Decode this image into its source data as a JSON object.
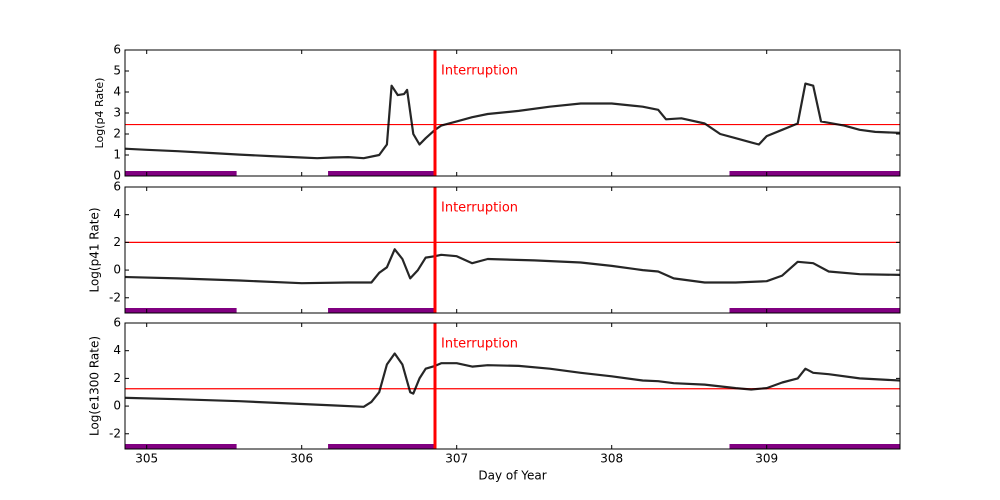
{
  "chart_data": [
    {
      "type": "line",
      "y_label": "Log(p4 Rate)",
      "color": "#000000",
      "x": [
        304.86,
        305.0,
        305.2,
        305.4,
        305.6,
        305.8,
        306.0,
        306.1,
        306.2,
        306.3,
        306.4,
        306.5,
        306.55,
        306.58,
        306.62,
        306.66,
        306.68,
        306.72,
        306.76,
        306.8,
        306.86,
        306.9,
        307.0,
        307.1,
        307.2,
        307.4,
        307.6,
        307.8,
        308.0,
        308.2,
        308.3,
        308.35,
        308.45,
        308.6,
        308.7,
        308.8,
        308.9,
        308.95,
        309.0,
        309.1,
        309.2,
        309.25,
        309.3,
        309.35,
        309.5,
        309.6,
        309.7,
        309.86
      ],
      "values": [
        1.3,
        1.25,
        1.18,
        1.1,
        1.02,
        0.95,
        0.88,
        0.85,
        0.88,
        0.9,
        0.85,
        1.0,
        1.5,
        4.3,
        3.85,
        3.9,
        4.1,
        2.0,
        1.5,
        1.8,
        2.2,
        2.4,
        2.6,
        2.8,
        2.95,
        3.1,
        3.3,
        3.45,
        3.45,
        3.3,
        3.15,
        2.7,
        2.75,
        2.5,
        2.0,
        1.8,
        1.6,
        1.5,
        1.9,
        2.2,
        2.5,
        4.4,
        4.3,
        2.6,
        2.4,
        2.2,
        2.1,
        2.05
      ],
      "xlim": [
        304.86,
        309.86
      ],
      "xticks": [
        305,
        306,
        307,
        308,
        309
      ],
      "ylim": [
        0,
        6
      ],
      "yticks": [
        0,
        1,
        2,
        3,
        4,
        5,
        6
      ],
      "threshold": 2.45,
      "threshold_color": "#ff0000",
      "annotation": {
        "text": "Interruption",
        "x": 306.86,
        "color": "#ff0000"
      },
      "bands": [
        [
          304.86,
          305.58
        ],
        [
          306.17,
          306.86
        ],
        [
          308.76,
          309.86
        ]
      ],
      "band_color": "#800080"
    },
    {
      "type": "line",
      "y_label": "Log(p41 Rate)",
      "color": "#000000",
      "x": [
        304.86,
        305.2,
        305.6,
        306.0,
        306.3,
        306.45,
        306.5,
        306.55,
        306.6,
        306.65,
        306.7,
        306.75,
        306.8,
        306.86,
        306.9,
        307.0,
        307.1,
        307.2,
        307.5,
        307.8,
        308.0,
        308.2,
        308.3,
        308.4,
        308.6,
        308.8,
        309.0,
        309.1,
        309.2,
        309.3,
        309.4,
        309.6,
        309.86
      ],
      "values": [
        -0.5,
        -0.6,
        -0.75,
        -0.95,
        -0.9,
        -0.9,
        -0.2,
        0.2,
        1.5,
        0.8,
        -0.6,
        0.0,
        0.9,
        1.0,
        1.1,
        1.0,
        0.5,
        0.8,
        0.7,
        0.55,
        0.3,
        0.0,
        -0.1,
        -0.6,
        -0.9,
        -0.9,
        -0.8,
        -0.4,
        0.6,
        0.5,
        -0.1,
        -0.3,
        -0.35
      ],
      "xlim": [
        304.86,
        309.86
      ],
      "xticks": [
        305,
        306,
        307,
        308,
        309
      ],
      "ylim": [
        -3.1,
        6
      ],
      "yticks": [
        -2,
        0,
        2,
        4,
        6
      ],
      "threshold": 2,
      "threshold_color": "#ff0000",
      "annotation": {
        "text": "Interruption",
        "x": 306.86,
        "color": "#ff0000"
      },
      "bands": [
        [
          304.86,
          305.58
        ],
        [
          306.17,
          306.86
        ],
        [
          308.76,
          309.86
        ]
      ],
      "band_color": "#800080"
    },
    {
      "type": "line",
      "y_label": "Log(e1300 Rate)",
      "x_label": "Day of Year",
      "color": "#000000",
      "x": [
        304.86,
        305.2,
        305.6,
        306.0,
        306.2,
        306.4,
        306.45,
        306.5,
        306.55,
        306.6,
        306.65,
        306.7,
        306.72,
        306.76,
        306.8,
        306.86,
        306.9,
        307.0,
        307.1,
        307.2,
        307.4,
        307.6,
        307.8,
        308.0,
        308.2,
        308.3,
        308.4,
        308.6,
        308.8,
        308.9,
        309.0,
        309.1,
        309.2,
        309.25,
        309.3,
        309.4,
        309.6,
        309.86
      ],
      "values": [
        0.6,
        0.5,
        0.35,
        0.15,
        0.05,
        -0.05,
        0.3,
        1.0,
        3.0,
        3.8,
        3.0,
        1.0,
        0.9,
        2.0,
        2.7,
        2.9,
        3.1,
        3.1,
        2.85,
        2.95,
        2.9,
        2.7,
        2.4,
        2.15,
        1.85,
        1.8,
        1.65,
        1.55,
        1.3,
        1.2,
        1.3,
        1.7,
        2.0,
        2.7,
        2.4,
        2.3,
        2.0,
        1.85
      ],
      "xlim": [
        304.86,
        309.86
      ],
      "xticks": [
        305,
        306,
        307,
        308,
        309
      ],
      "show_xtick_labels": true,
      "ylim": [
        -3.1,
        6
      ],
      "yticks": [
        -2,
        0,
        2,
        4,
        6
      ],
      "threshold": 1.25,
      "threshold_color": "#ff0000",
      "annotation": {
        "text": "Interruption",
        "x": 306.86,
        "color": "#ff0000"
      },
      "bands": [
        [
          304.86,
          305.58
        ],
        [
          306.17,
          306.86
        ],
        [
          308.76,
          309.86
        ]
      ],
      "band_color": "#800080"
    }
  ]
}
